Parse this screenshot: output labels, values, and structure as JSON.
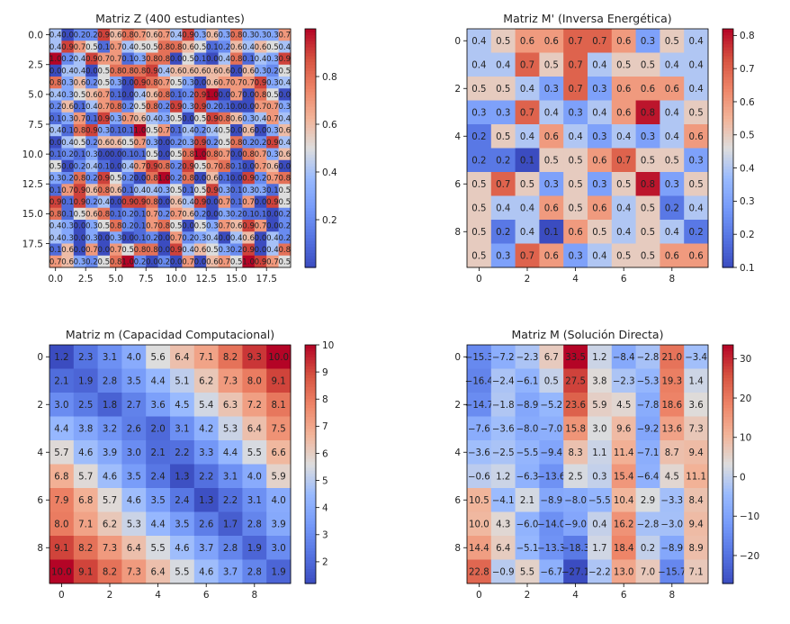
{
  "chart_data": [
    {
      "type": "heatmap",
      "title": "Matriz Z (400 estudiantes)",
      "rows": 20,
      "cols": 20,
      "colormap": "coolwarm",
      "vmin": 0.0,
      "vmax": 1.0,
      "colorbar_ticks": [
        "0.2",
        "0.4",
        "0.6",
        "0.8"
      ],
      "colorbar_tick_values": [
        0.2,
        0.4,
        0.6,
        0.8
      ],
      "x_ticks": [
        "0.0",
        "2.5",
        "5.0",
        "7.5",
        "10.0",
        "12.5",
        "15.0",
        "17.5"
      ],
      "x_tick_values": [
        0,
        2.5,
        5,
        7.5,
        10,
        12.5,
        15,
        17.5
      ],
      "y_ticks": [
        "0.0",
        "2.5",
        "5.0",
        "7.5",
        "10.0",
        "12.5",
        "15.0",
        "17.5"
      ],
      "y_tick_values": [
        0,
        2.5,
        5,
        7.5,
        10,
        12.5,
        15,
        17.5
      ],
      "annotate": true,
      "decimals": 1,
      "values": [
        [
          0.4,
          0.0,
          0.2,
          0.2,
          0.9,
          0.6,
          0.8,
          0.7,
          0.6,
          0.7,
          0.4,
          0.9,
          0.3,
          0.6,
          0.3,
          0.8,
          0.3,
          0.3,
          0.3,
          0.7
        ],
        [
          0.4,
          0.9,
          0.7,
          0.5,
          0.1,
          0.7,
          0.4,
          0.5,
          0.5,
          0.8,
          0.8,
          0.6,
          0.5,
          0.1,
          0.2,
          0.6,
          0.4,
          0.6,
          0.5,
          0.4
        ],
        [
          1.0,
          0.2,
          0.4,
          0.9,
          0.7,
          0.7,
          0.1,
          0.3,
          0.8,
          0.8,
          0.0,
          0.5,
          0.1,
          0.0,
          0.4,
          0.8,
          0.1,
          0.4,
          0.3,
          0.9
        ],
        [
          0.0,
          0.4,
          0.4,
          0.0,
          0.5,
          0.8,
          0.8,
          0.8,
          0.9,
          0.4,
          0.6,
          0.6,
          0.6,
          0.6,
          0.6,
          0.0,
          0.6,
          0.3,
          0.2,
          0.5
        ],
        [
          0.8,
          0.3,
          0.6,
          0.2,
          0.5,
          0.3,
          0.0,
          0.9,
          0.8,
          0.7,
          0.5,
          0.3,
          0.0,
          0.6,
          0.7,
          0.7,
          0.7,
          0.9,
          0.3,
          0.4
        ],
        [
          0.4,
          0.3,
          0.5,
          0.6,
          0.7,
          0.1,
          0.0,
          0.4,
          0.6,
          0.8,
          0.1,
          0.2,
          0.9,
          1.0,
          0.0,
          0.7,
          0.0,
          0.8,
          0.5,
          0.0
        ],
        [
          0.2,
          0.6,
          0.1,
          0.4,
          0.7,
          0.8,
          0.2,
          0.5,
          0.8,
          0.2,
          0.9,
          0.3,
          0.9,
          0.2,
          0.1,
          0.0,
          0.0,
          0.7,
          0.7,
          0.3
        ],
        [
          0.1,
          0.3,
          0.7,
          0.1,
          0.9,
          0.3,
          0.7,
          0.6,
          0.4,
          0.3,
          0.5,
          0.0,
          0.5,
          0.9,
          0.8,
          0.6,
          0.3,
          0.4,
          0.7,
          0.4
        ],
        [
          0.4,
          0.1,
          0.8,
          0.9,
          0.3,
          0.1,
          0.1,
          1.0,
          0.5,
          0.7,
          0.1,
          0.4,
          0.2,
          0.4,
          0.5,
          0.0,
          0.6,
          0.0,
          0.3,
          0.6
        ],
        [
          0.0,
          0.4,
          0.5,
          0.2,
          0.6,
          0.6,
          0.5,
          0.7,
          0.3,
          0.0,
          0.2,
          0.3,
          0.9,
          0.2,
          0.5,
          0.8,
          0.2,
          0.2,
          0.9,
          0.4
        ],
        [
          0.1,
          0.2,
          0.1,
          0.3,
          0.0,
          0.0,
          0.1,
          0.1,
          0.5,
          0.0,
          0.5,
          0.8,
          1.0,
          0.8,
          0.7,
          0.0,
          0.8,
          0.7,
          0.3,
          0.6
        ],
        [
          0.5,
          0.0,
          0.2,
          0.4,
          0.1,
          0.0,
          0.4,
          0.7,
          0.9,
          0.8,
          0.2,
          0.9,
          0.5,
          0.7,
          0.8,
          0.1,
          0.0,
          0.7,
          0.6,
          0.0
        ],
        [
          0.3,
          0.2,
          0.8,
          0.2,
          0.9,
          0.5,
          0.2,
          0.0,
          0.8,
          1.0,
          0.2,
          0.8,
          0.0,
          0.6,
          0.1,
          0.0,
          0.9,
          0.2,
          0.7,
          0.8
        ],
        [
          0.1,
          0.7,
          0.9,
          0.6,
          0.8,
          0.6,
          0.1,
          0.4,
          0.4,
          0.3,
          0.5,
          0.1,
          0.5,
          0.9,
          0.3,
          0.1,
          0.3,
          0.3,
          0.1,
          0.5
        ],
        [
          0.9,
          0.1,
          0.9,
          0.2,
          0.4,
          0.0,
          0.9,
          0.9,
          0.8,
          0.0,
          0.6,
          0.4,
          0.9,
          0.0,
          0.7,
          0.1,
          0.7,
          0.0,
          0.9,
          0.5
        ],
        [
          0.8,
          0.1,
          0.5,
          0.6,
          0.8,
          0.1,
          0.2,
          0.1,
          0.7,
          0.2,
          0.7,
          0.6,
          0.2,
          0.0,
          0.3,
          0.2,
          0.1,
          0.1,
          0.0,
          0.2
        ],
        [
          0.4,
          0.3,
          0.0,
          0.3,
          0.5,
          0.8,
          0.2,
          0.1,
          0.7,
          0.8,
          0.5,
          0.0,
          0.5,
          0.3,
          0.7,
          0.6,
          0.9,
          0.7,
          0.0,
          0.2
        ],
        [
          0.4,
          0.3,
          0.0,
          0.3,
          0.0,
          0.3,
          0.0,
          0.1,
          0.2,
          0.0,
          0.7,
          0.2,
          0.3,
          0.4,
          0.0,
          0.4,
          0.6,
          0.0,
          0.4,
          0.2
        ],
        [
          0.1,
          0.6,
          0.0,
          0.7,
          0.0,
          0.7,
          0.5,
          0.8,
          0.8,
          0.0,
          0.9,
          0.4,
          0.6,
          0.5,
          0.3,
          0.2,
          0.9,
          0.0,
          0.4,
          0.8
        ],
        [
          0.7,
          0.6,
          0.3,
          0.2,
          0.5,
          0.8,
          1.0,
          0.2,
          0.0,
          0.2,
          0.0,
          0.7,
          0.0,
          0.6,
          0.7,
          0.5,
          1.0,
          0.9,
          0.7,
          0.5
        ]
      ]
    },
    {
      "type": "heatmap",
      "title": "Matriz M' (Inversa Energética)",
      "rows": 10,
      "cols": 10,
      "colormap": "coolwarm",
      "vmin": 0.1,
      "vmax": 0.82,
      "colorbar_ticks": [
        "0.1",
        "0.2",
        "0.3",
        "0.4",
        "0.5",
        "0.6",
        "0.7",
        "0.8"
      ],
      "colorbar_tick_values": [
        0.1,
        0.2,
        0.3,
        0.4,
        0.5,
        0.6,
        0.7,
        0.8
      ],
      "x_ticks": [
        "0",
        "2",
        "4",
        "6",
        "8"
      ],
      "x_tick_values": [
        0,
        2,
        4,
        6,
        8
      ],
      "y_ticks": [
        "0",
        "2",
        "4",
        "6",
        "8"
      ],
      "y_tick_values": [
        0,
        2,
        4,
        6,
        8
      ],
      "annotate": true,
      "decimals": 1,
      "values": [
        [
          0.4,
          0.5,
          0.6,
          0.6,
          0.7,
          0.7,
          0.6,
          0.3,
          0.5,
          0.4
        ],
        [
          0.4,
          0.4,
          0.7,
          0.5,
          0.7,
          0.4,
          0.5,
          0.5,
          0.4,
          0.4
        ],
        [
          0.5,
          0.5,
          0.4,
          0.3,
          0.7,
          0.3,
          0.6,
          0.6,
          0.6,
          0.4
        ],
        [
          0.3,
          0.3,
          0.7,
          0.4,
          0.3,
          0.4,
          0.6,
          0.8,
          0.4,
          0.5
        ],
        [
          0.2,
          0.5,
          0.4,
          0.6,
          0.4,
          0.3,
          0.4,
          0.3,
          0.4,
          0.6
        ],
        [
          0.2,
          0.2,
          0.1,
          0.5,
          0.5,
          0.6,
          0.7,
          0.5,
          0.5,
          0.3
        ],
        [
          0.5,
          0.7,
          0.5,
          0.3,
          0.5,
          0.3,
          0.5,
          0.8,
          0.3,
          0.5
        ],
        [
          0.5,
          0.4,
          0.4,
          0.6,
          0.5,
          0.6,
          0.4,
          0.5,
          0.2,
          0.4
        ],
        [
          0.5,
          0.2,
          0.4,
          0.1,
          0.6,
          0.5,
          0.4,
          0.5,
          0.4,
          0.2
        ],
        [
          0.5,
          0.3,
          0.7,
          0.6,
          0.3,
          0.4,
          0.5,
          0.5,
          0.6,
          0.6
        ]
      ]
    },
    {
      "type": "heatmap",
      "title": "Matriz m (Capacidad Computacional)",
      "rows": 10,
      "cols": 10,
      "colormap": "coolwarm",
      "vmin": 1.2,
      "vmax": 10.0,
      "colorbar_ticks": [
        "2",
        "3",
        "4",
        "5",
        "6",
        "7",
        "8",
        "9",
        "10"
      ],
      "colorbar_tick_values": [
        2,
        3,
        4,
        5,
        6,
        7,
        8,
        9,
        10
      ],
      "x_ticks": [
        "0",
        "2",
        "4",
        "6",
        "8"
      ],
      "x_tick_values": [
        0,
        2,
        4,
        6,
        8
      ],
      "y_ticks": [
        "0",
        "2",
        "4",
        "6",
        "8"
      ],
      "y_tick_values": [
        0,
        2,
        4,
        6,
        8
      ],
      "annotate": true,
      "decimals": 1,
      "values": [
        [
          1.2,
          2.3,
          3.1,
          4.0,
          5.6,
          6.4,
          7.1,
          8.2,
          9.3,
          10.0
        ],
        [
          2.1,
          1.9,
          2.8,
          3.5,
          4.4,
          5.1,
          6.2,
          7.3,
          8.0,
          9.1
        ],
        [
          3.0,
          2.5,
          1.8,
          2.7,
          3.6,
          4.5,
          5.4,
          6.3,
          7.2,
          8.1
        ],
        [
          4.4,
          3.8,
          3.2,
          2.6,
          2.0,
          3.1,
          4.2,
          5.3,
          6.4,
          7.5
        ],
        [
          5.7,
          4.6,
          3.9,
          3.0,
          2.1,
          2.2,
          3.3,
          4.4,
          5.5,
          6.6
        ],
        [
          6.8,
          5.7,
          4.6,
          3.5,
          2.4,
          1.3,
          2.2,
          3.1,
          4.0,
          5.9
        ],
        [
          7.9,
          6.8,
          5.7,
          4.6,
          3.5,
          2.4,
          1.3,
          2.2,
          3.1,
          4.0
        ],
        [
          8.0,
          7.1,
          6.2,
          5.3,
          4.4,
          3.5,
          2.6,
          1.7,
          2.8,
          3.9
        ],
        [
          9.1,
          8.2,
          7.3,
          6.4,
          5.5,
          4.6,
          3.7,
          2.8,
          1.9,
          3.0
        ],
        [
          10.0,
          9.1,
          8.2,
          7.3,
          6.4,
          5.5,
          4.6,
          3.7,
          2.8,
          1.9
        ]
      ]
    },
    {
      "type": "heatmap",
      "title": "Matriz M (Solución Directa)",
      "rows": 10,
      "cols": 10,
      "colormap": "coolwarm",
      "vmin": -27.1,
      "vmax": 33.5,
      "colorbar_ticks": [
        "−20",
        "−10",
        "0",
        "10",
        "20",
        "30"
      ],
      "colorbar_tick_values": [
        -20,
        -10,
        0,
        10,
        20,
        30
      ],
      "x_ticks": [
        "0",
        "2",
        "4",
        "6",
        "8"
      ],
      "x_tick_values": [
        0,
        2,
        4,
        6,
        8
      ],
      "y_ticks": [
        "0",
        "2",
        "4",
        "6",
        "8"
      ],
      "y_tick_values": [
        0,
        2,
        4,
        6,
        8
      ],
      "annotate": true,
      "decimals": 1,
      "values": [
        [
          -15.3,
          -7.2,
          -2.3,
          6.7,
          33.5,
          1.2,
          -8.4,
          -2.8,
          21.0,
          -3.4
        ],
        [
          -16.4,
          -2.4,
          -6.1,
          0.5,
          27.5,
          3.8,
          -2.3,
          -5.3,
          19.3,
          1.4
        ],
        [
          -14.7,
          -1.8,
          -8.9,
          -5.2,
          23.6,
          5.9,
          4.5,
          -7.8,
          18.6,
          3.6
        ],
        [
          -7.6,
          -3.6,
          -8.0,
          -7.0,
          15.8,
          3.0,
          9.6,
          -9.2,
          13.6,
          7.3
        ],
        [
          -3.6,
          -2.5,
          -5.5,
          -9.4,
          8.3,
          1.1,
          11.4,
          -7.1,
          8.7,
          9.4
        ],
        [
          -0.6,
          1.2,
          -6.3,
          -13.6,
          2.5,
          0.3,
          15.4,
          -6.4,
          4.5,
          11.1
        ],
        [
          10.5,
          -4.1,
          2.1,
          -8.9,
          -8.0,
          -5.5,
          10.4,
          2.9,
          -3.3,
          8.4
        ],
        [
          10.0,
          4.3,
          -6.0,
          -14.0,
          -9.0,
          0.4,
          16.2,
          -2.8,
          -3.0,
          9.4
        ],
        [
          14.4,
          6.4,
          -5.1,
          -13.3,
          -18.3,
          1.7,
          18.4,
          0.2,
          -8.9,
          8.9
        ],
        [
          22.8,
          -0.9,
          5.5,
          -6.7,
          -27.1,
          -2.2,
          13.0,
          7.0,
          -15.7,
          7.1
        ]
      ]
    }
  ]
}
